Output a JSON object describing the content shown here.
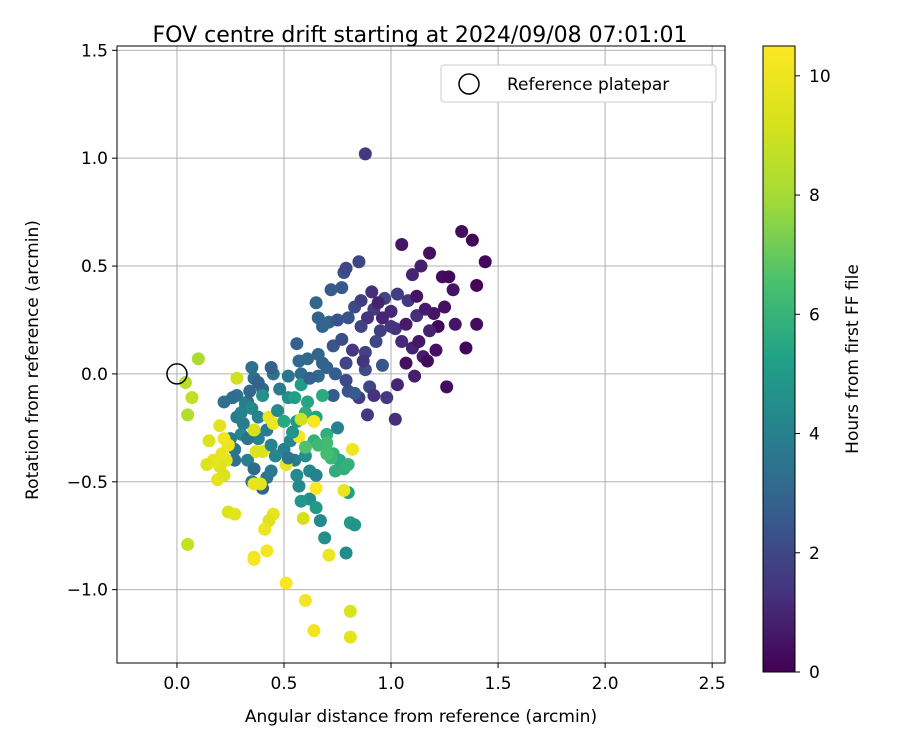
{
  "chart_data": {
    "type": "scatter",
    "title": "FOV centre drift starting at 2024/09/08 07:01:01",
    "xlabel": "Angular distance from reference (arcmin)",
    "ylabel": "Rotation from reference (arcmin)",
    "xlim": [
      -0.28,
      2.56
    ],
    "ylim": [
      -1.34,
      1.52
    ],
    "xticks": [
      "0.0",
      "0.5",
      "1.0",
      "1.5",
      "2.0",
      "2.5"
    ],
    "xtick_values": [
      0,
      0.5,
      1.0,
      1.5,
      2.0,
      2.5
    ],
    "yticks": [
      "1.5",
      "1.0",
      "0.5",
      "0.0",
      "−0.5",
      "−1.0"
    ],
    "ytick_values": [
      1.5,
      1.0,
      0.5,
      0,
      -0.5,
      -1.0
    ],
    "grid": true,
    "legend": {
      "placement": "top-right",
      "entries": [
        "Reference platepar"
      ]
    },
    "reference_point": {
      "x": 0.0,
      "y": 0.0
    },
    "colorbar": {
      "label": "Hours from first FF file",
      "range": [
        0,
        10.5
      ],
      "ticks": [
        "0",
        "2",
        "4",
        "6",
        "8",
        "10"
      ],
      "tick_values": [
        0,
        2,
        4,
        6,
        8,
        10
      ],
      "colormap": "viridis"
    },
    "points": [
      [
        0.88,
        1.02,
        1.5
      ],
      [
        1.33,
        0.66,
        0.3
      ],
      [
        1.38,
        0.62,
        0.1
      ],
      [
        1.44,
        0.52,
        0.2
      ],
      [
        1.05,
        0.6,
        0.6
      ],
      [
        1.18,
        0.56,
        0.4
      ],
      [
        1.14,
        0.5,
        0.8
      ],
      [
        1.1,
        0.46,
        1.0
      ],
      [
        1.24,
        0.45,
        0.3
      ],
      [
        1.27,
        0.45,
        0.2
      ],
      [
        1.29,
        0.39,
        0.5
      ],
      [
        1.4,
        0.41,
        0.1
      ],
      [
        1.25,
        0.31,
        0.4
      ],
      [
        1.2,
        0.28,
        0.6
      ],
      [
        1.22,
        0.22,
        0.2
      ],
      [
        1.18,
        0.2,
        0.9
      ],
      [
        1.12,
        0.27,
        1.2
      ],
      [
        1.08,
        0.34,
        1.5
      ],
      [
        1.03,
        0.37,
        1.7
      ],
      [
        0.97,
        0.35,
        1.9
      ],
      [
        0.92,
        0.3,
        1.6
      ],
      [
        0.89,
        0.26,
        1.3
      ],
      [
        0.86,
        0.22,
        1.8
      ],
      [
        0.83,
        0.31,
        2.1
      ],
      [
        0.8,
        0.26,
        2.3
      ],
      [
        0.77,
        0.4,
        2.5
      ],
      [
        0.78,
        0.47,
        2.2
      ],
      [
        0.85,
        0.52,
        1.9
      ],
      [
        0.79,
        0.49,
        2.0
      ],
      [
        1.4,
        0.23,
        0.3
      ],
      [
        1.3,
        0.23,
        0.5
      ],
      [
        1.35,
        0.12,
        0.2
      ],
      [
        1.21,
        0.11,
        0.4
      ],
      [
        1.15,
        0.08,
        0.7
      ],
      [
        1.17,
        0.06,
        0.3
      ],
      [
        1.1,
        0.12,
        0.9
      ],
      [
        1.05,
        0.15,
        1.1
      ],
      [
        1.0,
        0.22,
        1.4
      ],
      [
        0.95,
        0.2,
        1.7
      ],
      [
        0.93,
        0.15,
        2.0
      ],
      [
        0.88,
        0.1,
        1.8
      ],
      [
        0.82,
        0.11,
        1.5
      ],
      [
        0.79,
        0.05,
        1.9
      ],
      [
        0.88,
        0.02,
        2.2
      ],
      [
        0.96,
        0.04,
        2.4
      ],
      [
        0.9,
        -0.06,
        2.0
      ],
      [
        0.85,
        -0.11,
        1.7
      ],
      [
        0.92,
        -0.1,
        1.3
      ],
      [
        0.98,
        -0.11,
        1.5
      ],
      [
        1.03,
        -0.05,
        1.0
      ],
      [
        1.11,
        -0.01,
        0.8
      ],
      [
        1.26,
        -0.06,
        0.3
      ],
      [
        1.02,
        -0.21,
        1.2
      ],
      [
        0.89,
        -0.19,
        1.5
      ],
      [
        0.8,
        -0.08,
        2.3
      ],
      [
        0.73,
        -0.1,
        2.6
      ],
      [
        0.74,
        0.0,
        2.7
      ],
      [
        0.68,
        0.05,
        2.9
      ],
      [
        0.66,
        0.09,
        3.0
      ],
      [
        0.7,
        0.03,
        2.8
      ],
      [
        0.66,
        -0.01,
        3.1
      ],
      [
        0.58,
        0.0,
        3.3
      ],
      [
        0.57,
        0.06,
        3.2
      ],
      [
        0.56,
        0.14,
        2.8
      ],
      [
        0.66,
        0.26,
        2.9
      ],
      [
        0.71,
        0.24,
        3.0
      ],
      [
        0.65,
        0.33,
        3.0
      ],
      [
        0.72,
        0.39,
        2.6
      ],
      [
        0.52,
        -0.01,
        3.6
      ],
      [
        0.45,
        0.0,
        3.4
      ],
      [
        0.4,
        -0.07,
        3.0
      ],
      [
        0.35,
        0.03,
        3.5
      ],
      [
        0.36,
        -0.02,
        3.3
      ],
      [
        0.33,
        -0.13,
        3.2
      ],
      [
        0.28,
        -0.1,
        3.6
      ],
      [
        0.22,
        -0.13,
        3.4
      ],
      [
        0.28,
        -0.2,
        3.7
      ],
      [
        0.32,
        -0.14,
        3.9
      ],
      [
        0.35,
        -0.16,
        4.3
      ],
      [
        0.38,
        -0.2,
        4.0
      ],
      [
        0.42,
        -0.26,
        3.8
      ],
      [
        0.38,
        -0.3,
        4.1
      ],
      [
        0.3,
        -0.28,
        4.3
      ],
      [
        0.33,
        -0.3,
        3.5
      ],
      [
        0.25,
        -0.3,
        3.8
      ],
      [
        0.27,
        -0.35,
        3.6
      ],
      [
        0.33,
        -0.4,
        3.9
      ],
      [
        0.36,
        -0.44,
        3.2
      ],
      [
        0.27,
        -0.4,
        3.4
      ],
      [
        0.35,
        -0.5,
        3.6
      ],
      [
        0.4,
        -0.53,
        3.0
      ],
      [
        0.42,
        -0.48,
        3.5
      ],
      [
        0.44,
        -0.45,
        3.7
      ],
      [
        0.5,
        -0.35,
        3.9
      ],
      [
        0.53,
        -0.31,
        4.2
      ],
      [
        0.55,
        -0.4,
        3.8
      ],
      [
        0.56,
        -0.47,
        4.4
      ],
      [
        0.6,
        -0.38,
        4.6
      ],
      [
        0.62,
        -0.45,
        4.2
      ],
      [
        0.65,
        -0.47,
        4.1
      ],
      [
        0.57,
        -0.52,
        4.3
      ],
      [
        0.62,
        -0.58,
        4.5
      ],
      [
        0.67,
        -0.68,
        4.3
      ],
      [
        0.69,
        -0.76,
        4.5
      ],
      [
        0.65,
        -0.62,
        5.0
      ],
      [
        0.52,
        -0.11,
        4.5
      ],
      [
        0.55,
        -0.11,
        5.2
      ],
      [
        0.58,
        -0.05,
        5.0
      ],
      [
        0.61,
        -0.13,
        5.4
      ],
      [
        0.6,
        -0.18,
        5.7
      ],
      [
        0.56,
        -0.22,
        4.9
      ],
      [
        0.65,
        -0.2,
        5.3
      ],
      [
        0.68,
        -0.1,
        5.6
      ],
      [
        0.7,
        -0.28,
        5.8
      ],
      [
        0.64,
        -0.31,
        5.9
      ],
      [
        0.66,
        -0.33,
        6.2
      ],
      [
        0.7,
        -0.32,
        6.3
      ],
      [
        0.73,
        -0.37,
        6.0
      ],
      [
        0.76,
        -0.4,
        5.6
      ],
      [
        0.78,
        -0.44,
        5.8
      ],
      [
        0.72,
        -0.39,
        6.1
      ],
      [
        0.8,
        -0.55,
        5.3
      ],
      [
        0.81,
        -0.69,
        5.0
      ],
      [
        0.83,
        -0.7,
        4.8
      ],
      [
        0.79,
        -0.83,
        4.4
      ],
      [
        0.75,
        -0.25,
        4.0
      ],
      [
        0.8,
        -0.42,
        5.9
      ],
      [
        0.36,
        -0.26,
        9.3
      ],
      [
        0.37,
        -0.36,
        9.5
      ],
      [
        0.4,
        -0.36,
        9.4
      ],
      [
        0.43,
        -0.2,
        9.9
      ],
      [
        0.45,
        -0.23,
        10.0
      ],
      [
        0.39,
        -0.51,
        9.6
      ],
      [
        0.36,
        -0.51,
        9.8
      ],
      [
        0.23,
        -0.4,
        9.6
      ],
      [
        0.2,
        -0.43,
        9.5
      ],
      [
        0.19,
        -0.49,
        9.7
      ],
      [
        0.22,
        -0.47,
        9.4
      ],
      [
        0.21,
        -0.37,
        9.8
      ],
      [
        0.2,
        -0.24,
        9.6
      ],
      [
        0.15,
        -0.31,
        9.4
      ],
      [
        0.17,
        -0.4,
        9.7
      ],
      [
        0.14,
        -0.42,
        9.5
      ],
      [
        0.24,
        -0.33,
        9.9
      ],
      [
        0.22,
        -0.3,
        10.1
      ],
      [
        0.28,
        -0.02,
        9.0
      ],
      [
        0.1,
        0.07,
        8.2
      ],
      [
        0.04,
        -0.04,
        8.5
      ],
      [
        0.07,
        -0.11,
        8.7
      ],
      [
        0.05,
        -0.19,
        8.3
      ],
      [
        0.05,
        -0.79,
        8.8
      ],
      [
        0.24,
        -0.64,
        9.4
      ],
      [
        0.27,
        -0.65,
        9.6
      ],
      [
        0.45,
        -0.65,
        9.8
      ],
      [
        0.43,
        -0.68,
        9.5
      ],
      [
        0.41,
        -0.72,
        10.0
      ],
      [
        0.42,
        -0.82,
        10.2
      ],
      [
        0.36,
        -0.85,
        9.9
      ],
      [
        0.36,
        -0.86,
        10.3
      ],
      [
        0.51,
        -0.97,
        10.3
      ],
      [
        0.6,
        -1.05,
        10.2
      ],
      [
        0.64,
        -1.19,
        10.1
      ],
      [
        0.81,
        -1.22,
        9.6
      ],
      [
        0.81,
        -1.1,
        9.4
      ],
      [
        0.59,
        -0.67,
        9.2
      ],
      [
        0.65,
        -0.53,
        10.4
      ],
      [
        0.78,
        -0.54,
        9.8
      ],
      [
        0.71,
        -0.84,
        10.0
      ],
      [
        0.82,
        -0.35,
        10.1
      ],
      [
        0.51,
        -0.42,
        9.8
      ],
      [
        0.57,
        -0.29,
        10.2
      ],
      [
        0.64,
        -0.22,
        10.3
      ],
      [
        0.58,
        -0.21,
        9.0
      ],
      [
        1.02,
        0.21,
        1.4
      ],
      [
        1.07,
        0.23,
        0.7
      ],
      [
        1.0,
        0.29,
        1.1
      ],
      [
        0.94,
        0.33,
        0.9
      ],
      [
        1.12,
        0.36,
        0.5
      ],
      [
        1.16,
        0.3,
        0.7
      ],
      [
        1.13,
        0.15,
        0.6
      ],
      [
        1.07,
        0.05,
        0.4
      ],
      [
        0.86,
        0.34,
        1.7
      ],
      [
        0.73,
        0.13,
        2.4
      ],
      [
        0.77,
        0.16,
        2.2
      ],
      [
        0.75,
        0.25,
        2.3
      ],
      [
        0.91,
        0.38,
        1.2
      ],
      [
        0.96,
        0.26,
        1.0
      ],
      [
        0.87,
        0.06,
        1.4
      ],
      [
        0.79,
        -0.03,
        2.1
      ],
      [
        0.83,
        -0.09,
        2.6
      ],
      [
        0.68,
        0.22,
        2.9
      ],
      [
        0.61,
        0.07,
        3.1
      ],
      [
        0.62,
        -0.02,
        2.8
      ],
      [
        0.48,
        -0.07,
        3.8
      ],
      [
        0.47,
        -0.17,
        4.4
      ],
      [
        0.4,
        -0.1,
        4.6
      ],
      [
        0.5,
        -0.22,
        5.5
      ],
      [
        0.54,
        -0.27,
        4.8
      ],
      [
        0.44,
        -0.33,
        4.0
      ],
      [
        0.46,
        -0.38,
        4.2
      ],
      [
        0.52,
        -0.39,
        3.6
      ],
      [
        0.6,
        -0.34,
        6.6
      ],
      [
        0.7,
        -0.37,
        6.4
      ],
      [
        0.74,
        -0.45,
        5.8
      ],
      [
        0.58,
        -0.59,
        4.9
      ],
      [
        0.31,
        -0.23,
        3.9
      ],
      [
        0.3,
        -0.18,
        4.1
      ],
      [
        0.26,
        -0.11,
        3.3
      ],
      [
        0.34,
        -0.08,
        3.1
      ],
      [
        0.38,
        -0.04,
        2.9
      ],
      [
        0.44,
        0.03,
        2.8
      ]
    ]
  }
}
